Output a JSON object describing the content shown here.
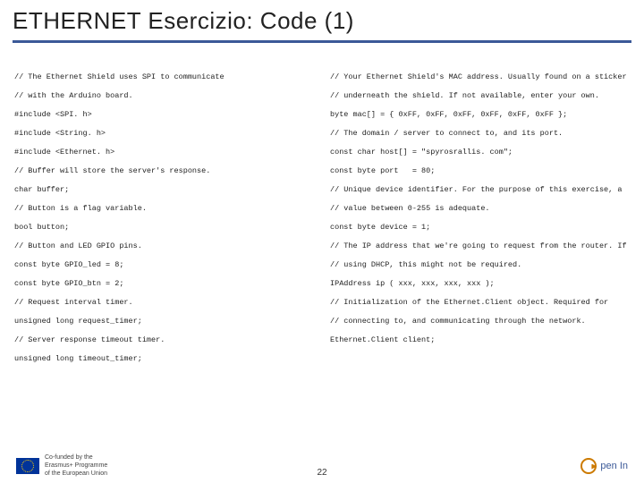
{
  "title": "ETHERNET Esercizio: Code (1)",
  "colors": {
    "rule": "#3b5998",
    "title_text": "#222222",
    "comment": "#555555",
    "code_text": "#222222",
    "flag_bg": "#003399",
    "flag_stars": "#ffcc00",
    "logo_ring": "#cc7a00",
    "logo_text": "#3b5998",
    "bg": "#ffffff"
  },
  "typography": {
    "title_fontsize": 26,
    "code_fontsize": 8.5,
    "code_lineheight": 21,
    "code_family": "Courier New",
    "title_family": "Arial"
  },
  "code_left": [
    "// The Ethernet Shield uses SPI to communicate",
    "// with the Arduino board.",
    "#include <SPI. h>",
    "#include <String. h>",
    "#include <Ethernet. h>",
    "// Buffer will store the server's response.",
    "char buffer;",
    "// Button is a flag variable.",
    "bool button;",
    "// Button and LED GPIO pins.",
    "const byte GPIO_led = 8;",
    "const byte GPIO_btn = 2;",
    "// Request interval timer.",
    "unsigned long request_timer;",
    "// Server response timeout timer.",
    "unsigned long timeout_timer;"
  ],
  "code_right": [
    "// Your Ethernet Shield's MAC address. Usually found on a sticker",
    "// underneath the shield. If not available, enter your own.",
    "byte mac[] = { 0xFF, 0xFF, 0xFF, 0xFF, 0xFF, 0xFF };",
    "// The domain / server to connect to, and its port.",
    "const char host[] = \"spyrosrallis. com\";",
    "const byte port   = 80;",
    "// Unique device identifier. For the purpose of this exercise, a",
    "// value between 0-255 is adequate.",
    "const byte device = 1;",
    "// The IP address that we're going to request from the router. If",
    "// using DHCP, this might not be required.",
    "IPAddress ip ( xxx, xxx, xxx, xxx );",
    "// Initialization of the Ethernet.Client object. Required for",
    "// connecting to, and communicating through the network.",
    "Ethernet.Client client;"
  ],
  "footer": {
    "cofunded_line1": "Co-funded by the",
    "cofunded_line2": "Erasmus+ Programme",
    "cofunded_line3": "of the European Union",
    "logo_text": "pen In",
    "page_number": "22"
  }
}
